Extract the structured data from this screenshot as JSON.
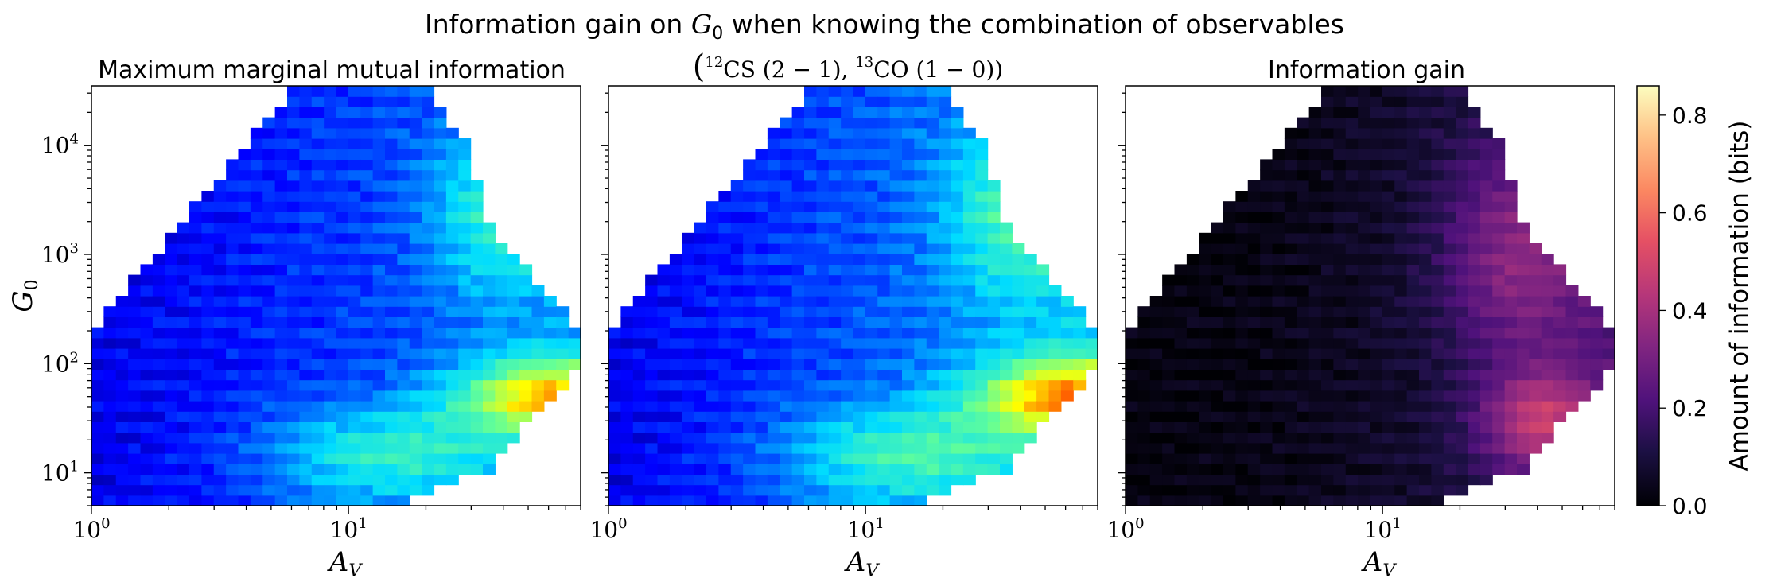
{
  "figure": {
    "suptitle_text": "Information gain on ",
    "suptitle_math": "G",
    "suptitle_math_sub": "0",
    "suptitle_rest": " when knowing the combination of observables"
  },
  "chart_data": [
    {
      "type": "heatmap",
      "title": "Maximum marginal mutual information",
      "xlabel": "A",
      "xlabel_sub": "V",
      "ylabel": "G",
      "ylabel_sub": "0",
      "xscale": "log",
      "yscale": "log",
      "xlim": [
        1,
        80
      ],
      "ylim": [
        5,
        35000
      ],
      "x_ticks": [
        {
          "value": 1,
          "label": "10^0"
        },
        {
          "value": 10,
          "label": "10^1"
        }
      ],
      "y_ticks": [
        {
          "value": 10,
          "label": "10^1"
        },
        {
          "value": 100,
          "label": "10^2"
        },
        {
          "value": 1000,
          "label": "10^3"
        },
        {
          "value": 10000,
          "label": "10^4"
        }
      ],
      "colormap": "jet",
      "clim": [
        0,
        0.86
      ]
    },
    {
      "type": "heatmap",
      "title": "(12CS (2 − 1), 13CO (1 − 0))",
      "title_parts": [
        "(",
        "12",
        "CS (2 − 1), ",
        "13",
        "CO (1 − 0))"
      ],
      "xlabel": "A",
      "xlabel_sub": "V",
      "xscale": "log",
      "yscale": "log",
      "xlim": [
        1,
        80
      ],
      "ylim": [
        5,
        35000
      ],
      "x_ticks": [
        {
          "value": 1,
          "label": "10^0"
        },
        {
          "value": 10,
          "label": "10^1"
        }
      ],
      "colormap": "jet",
      "clim": [
        0,
        0.86
      ]
    },
    {
      "type": "heatmap",
      "title": "Information gain",
      "xlabel": "A",
      "xlabel_sub": "V",
      "xscale": "log",
      "yscale": "log",
      "xlim": [
        1,
        80
      ],
      "ylim": [
        5,
        35000
      ],
      "x_ticks": [
        {
          "value": 1,
          "label": "10^0"
        },
        {
          "value": 10,
          "label": "10^1"
        }
      ],
      "colormap": "magma",
      "clim": [
        0,
        0.86
      ],
      "colorbar": {
        "label": "Amount of information (bits)",
        "ticks": [
          0.0,
          0.2,
          0.4,
          0.6,
          0.8
        ],
        "tick_labels": [
          "0.0",
          "0.2",
          "0.4",
          "0.6",
          "0.8"
        ],
        "range": [
          0,
          0.86
        ]
      }
    }
  ]
}
